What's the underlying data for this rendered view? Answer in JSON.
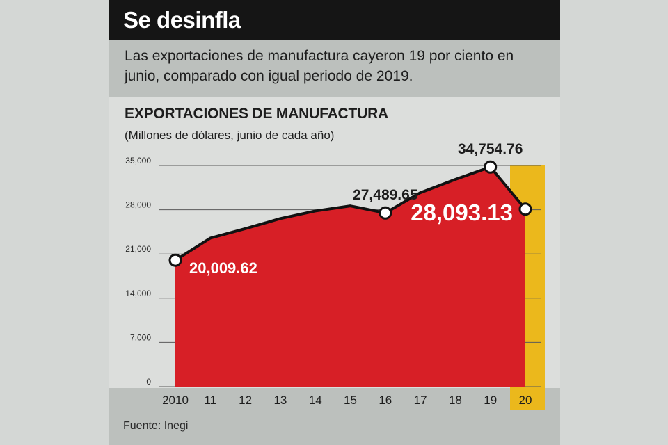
{
  "headline": "Se desinfla",
  "lede": "Las exportaciones de manufactura cayeron 19 por ciento en junio, comparado con igual periodo de 2019.",
  "source": "Fuente: Inegi",
  "colors": {
    "area": "#d71f26",
    "highlight": "#ebb81c",
    "line": "#111111",
    "header_bg": "#151515"
  },
  "chart_data": {
    "type": "area",
    "title": "EXPORTACIONES DE MANUFACTURA",
    "subtitle": "(Millones de dólares, junio de cada año)",
    "categories": [
      "2010",
      "11",
      "12",
      "13",
      "14",
      "15",
      "16",
      "17",
      "18",
      "19",
      "20"
    ],
    "values": [
      20009.62,
      23500,
      25000,
      26600,
      27800,
      28600,
      27489.65,
      30700,
      32800,
      34754.76,
      28093.13
    ],
    "ylim": [
      0,
      35000
    ],
    "yticks": [
      0,
      7000,
      14000,
      21000,
      28000,
      35000
    ],
    "ytick_labels": [
      "0",
      "7,000",
      "14,000",
      "21,000",
      "28,000",
      "35,000"
    ],
    "highlight_category": "20",
    "markers": [
      {
        "index": 0,
        "label": "20,009.62",
        "style": "inside-white"
      },
      {
        "index": 6,
        "label": "27,489.65",
        "style": "above-dark"
      },
      {
        "index": 9,
        "label": "34,754.76",
        "style": "above-dark"
      },
      {
        "index": 10,
        "label": "28,093.13",
        "style": "big-white"
      }
    ]
  }
}
